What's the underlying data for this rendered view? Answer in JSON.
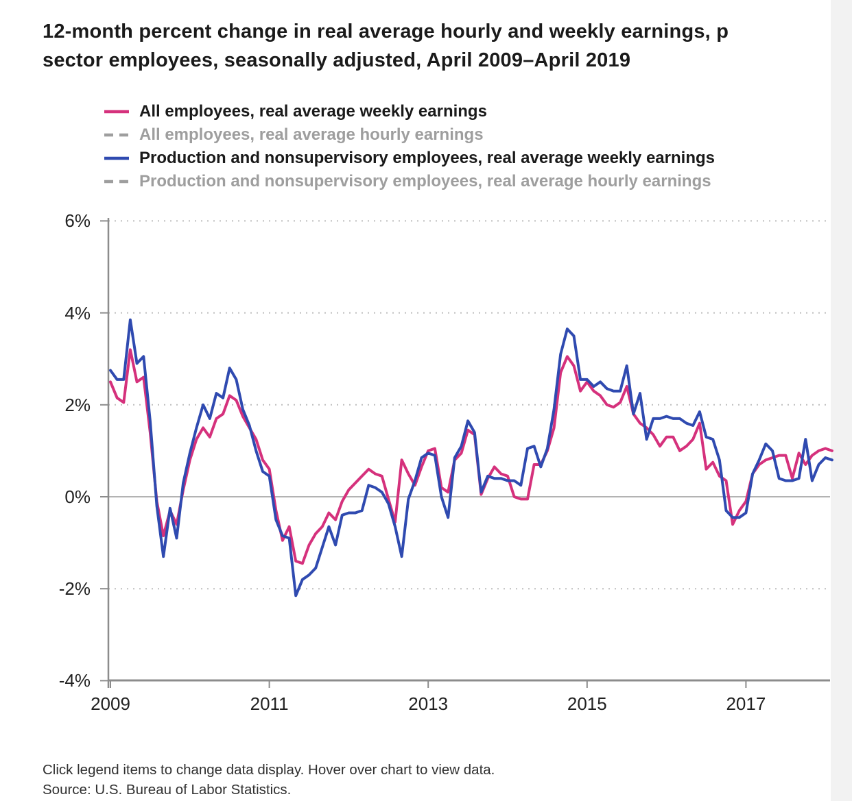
{
  "title": {
    "line1": "12-month percent change in real average hourly and weekly earnings, p",
    "line2": "sector employees, seasonally adjusted, April 2009–April 2019"
  },
  "legend": {
    "items": [
      {
        "label": "All employees, real average weekly earnings",
        "active": true,
        "swatch_color": "#d5317c",
        "swatch_style": "solid"
      },
      {
        "label": "All employees, real average hourly earnings",
        "active": false,
        "swatch_color": "#9e9e9e",
        "swatch_style": "dashed"
      },
      {
        "label": "Production and nonsupervisory employees, real average weekly earnings",
        "active": true,
        "swatch_color": "#2f4ab0",
        "swatch_style": "solid"
      },
      {
        "label": "Production and nonsupervisory employees, real average hourly earnings",
        "active": false,
        "swatch_color": "#9e9e9e",
        "swatch_style": "dashed"
      }
    ]
  },
  "chart_data": {
    "type": "line",
    "x_start": "2009-04",
    "x_step_months": 1,
    "ylim": [
      -4,
      6
    ],
    "grid": "dotted horizontal lines at 6,4,2,-2; solid line at 0",
    "legend_position": "top-left",
    "y_ticks": [
      {
        "label": "6%",
        "value": 6
      },
      {
        "label": "4%",
        "value": 4
      },
      {
        "label": "2%",
        "value": 2
      },
      {
        "label": "0%",
        "value": 0
      },
      {
        "label": "-2%",
        "value": -2
      },
      {
        "label": "-4%",
        "value": -4
      }
    ],
    "x_ticks": [
      {
        "label": "2009",
        "month_index": 0
      },
      {
        "label": "2011",
        "month_index": 24
      },
      {
        "label": "2013",
        "month_index": 48
      },
      {
        "label": "2015",
        "month_index": 72
      },
      {
        "label": "2017",
        "month_index": 96
      }
    ],
    "series": [
      {
        "name": "All employees, real average weekly earnings",
        "color": "#d5317c",
        "dash": "solid",
        "values": [
          2.5,
          2.15,
          2.05,
          3.2,
          2.5,
          2.6,
          1.4,
          -0.1,
          -0.85,
          -0.3,
          -0.6,
          0.15,
          0.8,
          1.25,
          1.5,
          1.3,
          1.7,
          1.8,
          2.2,
          2.1,
          1.75,
          1.5,
          1.25,
          0.8,
          0.6,
          -0.3,
          -0.95,
          -0.65,
          -1.4,
          -1.45,
          -1.05,
          -0.8,
          -0.65,
          -0.35,
          -0.5,
          -0.1,
          0.15,
          0.3,
          0.45,
          0.6,
          0.5,
          0.45,
          -0.05,
          -0.55,
          0.8,
          0.5,
          0.25,
          0.65,
          1.0,
          1.05,
          0.2,
          0.1,
          0.8,
          0.95,
          1.45,
          1.35,
          0.05,
          0.4,
          0.65,
          0.5,
          0.45,
          0.0,
          -0.05,
          -0.05,
          0.7,
          0.7,
          1.0,
          1.5,
          2.7,
          3.05,
          2.85,
          2.3,
          2.5,
          2.3,
          2.2,
          2.0,
          1.95,
          2.05,
          2.4,
          1.8,
          1.6,
          1.5,
          1.35,
          1.1,
          1.3,
          1.3,
          1.0,
          1.1,
          1.25,
          1.6,
          0.6,
          0.75,
          0.45,
          0.35,
          -0.6,
          -0.3,
          -0.1,
          0.5,
          0.7,
          0.8,
          0.85,
          0.9,
          0.9,
          0.4,
          0.95,
          0.7,
          0.9,
          1.0,
          1.05,
          1.0
        ]
      },
      {
        "name": "Production and nonsupervisory employees, real average weekly earnings",
        "color": "#2f4ab0",
        "dash": "solid",
        "values": [
          2.75,
          2.55,
          2.55,
          3.85,
          2.9,
          3.05,
          1.65,
          -0.2,
          -1.3,
          -0.25,
          -0.9,
          0.3,
          0.95,
          1.5,
          2.0,
          1.7,
          2.25,
          2.15,
          2.8,
          2.55,
          1.9,
          1.55,
          1.0,
          0.55,
          0.45,
          -0.5,
          -0.85,
          -0.9,
          -2.15,
          -1.8,
          -1.7,
          -1.55,
          -1.1,
          -0.65,
          -1.05,
          -0.4,
          -0.35,
          -0.35,
          -0.3,
          0.25,
          0.2,
          0.1,
          -0.15,
          -0.65,
          -1.3,
          -0.05,
          0.35,
          0.85,
          0.95,
          0.9,
          0.0,
          -0.45,
          0.85,
          1.1,
          1.65,
          1.4,
          0.1,
          0.45,
          0.4,
          0.4,
          0.35,
          0.35,
          0.25,
          1.05,
          1.1,
          0.65,
          1.05,
          1.9,
          3.1,
          3.65,
          3.5,
          2.55,
          2.55,
          2.4,
          2.5,
          2.35,
          2.3,
          2.3,
          2.85,
          1.8,
          2.25,
          1.25,
          1.7,
          1.7,
          1.75,
          1.7,
          1.7,
          1.6,
          1.55,
          1.85,
          1.3,
          1.25,
          0.8,
          -0.3,
          -0.45,
          -0.45,
          -0.35,
          0.5,
          0.8,
          1.15,
          1.0,
          0.4,
          0.35,
          0.35,
          0.4,
          1.25,
          0.35,
          0.7,
          0.85,
          0.8
        ]
      }
    ],
    "inactive_series_names": [
      "All employees, real average hourly earnings",
      "Production and nonsupervisory employees, real average hourly earnings"
    ]
  },
  "footer": {
    "note": "Click legend items to change data display. Hover over chart to view data.",
    "source": "Source: U.S. Bureau of Labor Statistics."
  },
  "colors": {
    "pink": "#d5317c",
    "blue": "#2f4ab0",
    "inactive_gray": "#9e9e9e",
    "axis_gray": "#8c8c8c",
    "grid_dot_gray": "#bdbdbd",
    "zero_line_gray": "#b3b3b3"
  }
}
